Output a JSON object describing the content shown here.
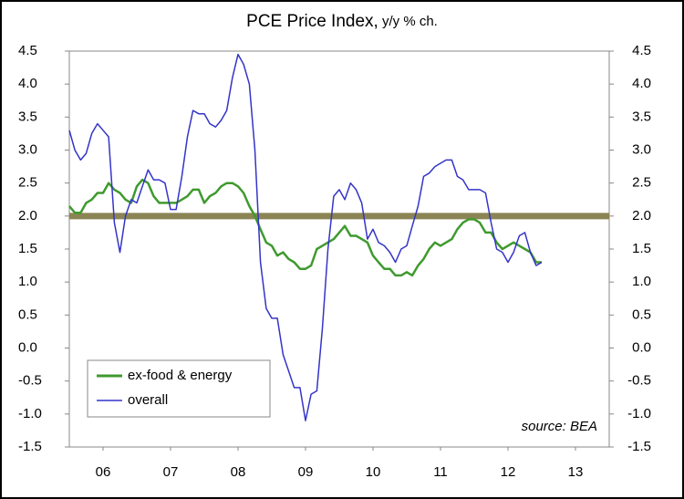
{
  "chart_data": {
    "type": "line",
    "title": "PCE Price Index,",
    "subtitle": "y/y % ch.",
    "annotation": "source: BEA",
    "x": [
      2006,
      2006.083,
      2006.167,
      2006.25,
      2006.333,
      2006.417,
      2006.5,
      2006.583,
      2006.667,
      2006.75,
      2006.833,
      2006.917,
      2007,
      2007.083,
      2007.167,
      2007.25,
      2007.333,
      2007.417,
      2007.5,
      2007.583,
      2007.667,
      2007.75,
      2007.833,
      2007.917,
      2008,
      2008.083,
      2008.167,
      2008.25,
      2008.333,
      2008.417,
      2008.5,
      2008.583,
      2008.667,
      2008.75,
      2008.833,
      2008.917,
      2009,
      2009.083,
      2009.167,
      2009.25,
      2009.333,
      2009.417,
      2009.5,
      2009.583,
      2009.667,
      2009.75,
      2009.833,
      2009.917,
      2010,
      2010.083,
      2010.167,
      2010.25,
      2010.333,
      2010.417,
      2010.5,
      2010.583,
      2010.667,
      2010.75,
      2010.833,
      2010.917,
      2011,
      2011.083,
      2011.167,
      2011.25,
      2011.333,
      2011.417,
      2011.5,
      2011.583,
      2011.667,
      2011.75,
      2011.833,
      2011.917,
      2012,
      2012.083,
      2012.167,
      2012.25,
      2012.333,
      2012.417,
      2012.5,
      2012.583,
      2012.667,
      2012.75,
      2012.833,
      2012.917,
      2013
    ],
    "series": [
      {
        "name": "ex-food & energy",
        "color": "#3f9a2e",
        "values": [
          2.15,
          2.05,
          2.05,
          2.2,
          2.25,
          2.35,
          2.35,
          2.5,
          2.4,
          2.35,
          2.25,
          2.2,
          2.45,
          2.55,
          2.5,
          2.3,
          2.2,
          2.2,
          2.2,
          2.2,
          2.25,
          2.3,
          2.4,
          2.4,
          2.2,
          2.3,
          2.35,
          2.45,
          2.5,
          2.5,
          2.45,
          2.35,
          2.15,
          2.0,
          1.8,
          1.6,
          1.55,
          1.4,
          1.45,
          1.35,
          1.3,
          1.2,
          1.2,
          1.25,
          1.5,
          1.55,
          1.6,
          1.65,
          1.75,
          1.85,
          1.7,
          1.7,
          1.65,
          1.6,
          1.4,
          1.3,
          1.2,
          1.2,
          1.1,
          1.1,
          1.15,
          1.1,
          1.25,
          1.35,
          1.5,
          1.6,
          1.55,
          1.6,
          1.65,
          1.8,
          1.9,
          1.95,
          1.95,
          1.9,
          1.75,
          1.75,
          1.6,
          1.5,
          1.55,
          1.6,
          1.55,
          1.5,
          1.45,
          1.3,
          1.3
        ]
      },
      {
        "name": "overall",
        "color": "#3434c8",
        "values": [
          3.3,
          3.0,
          2.85,
          2.95,
          3.25,
          3.4,
          3.3,
          3.2,
          1.9,
          1.45,
          2.0,
          2.25,
          2.2,
          2.45,
          2.7,
          2.55,
          2.55,
          2.5,
          2.1,
          2.1,
          2.6,
          3.2,
          3.6,
          3.55,
          3.55,
          3.4,
          3.35,
          3.45,
          3.6,
          4.1,
          4.45,
          4.3,
          4.0,
          3.0,
          1.3,
          0.6,
          0.45,
          0.45,
          -0.1,
          -0.35,
          -0.6,
          -0.6,
          -1.1,
          -0.7,
          -0.65,
          0.3,
          1.5,
          2.3,
          2.4,
          2.25,
          2.5,
          2.4,
          2.2,
          1.65,
          1.8,
          1.6,
          1.55,
          1.45,
          1.3,
          1.5,
          1.55,
          1.85,
          2.15,
          2.6,
          2.65,
          2.75,
          2.8,
          2.85,
          2.85,
          2.6,
          2.55,
          2.4,
          2.4,
          2.4,
          2.35,
          1.9,
          1.5,
          1.45,
          1.3,
          1.45,
          1.7,
          1.75,
          1.45,
          1.25,
          1.3
        ]
      }
    ],
    "reference_line": {
      "value": 2,
      "color": "#8b8454"
    },
    "xlim": [
      2006,
      2014
    ],
    "xticks": [
      {
        "value": 2006.5,
        "label": "06"
      },
      {
        "value": 2007.5,
        "label": "07"
      },
      {
        "value": 2008.5,
        "label": "08"
      },
      {
        "value": 2009.5,
        "label": "09"
      },
      {
        "value": 2010.5,
        "label": "10"
      },
      {
        "value": 2011.5,
        "label": "11"
      },
      {
        "value": 2012.5,
        "label": "12"
      },
      {
        "value": 2013.5,
        "label": "13"
      }
    ],
    "ylim": [
      -1.5,
      4.5
    ],
    "yticks": [
      -1.5,
      {
        "value": -1,
        "label": "-1.0"
      },
      -0.5,
      {
        "value": 0,
        "label": "0.0"
      },
      0.5,
      {
        "value": 1,
        "label": "1.0"
      },
      1.5,
      {
        "value": 2,
        "label": "2.0"
      },
      2.5,
      {
        "value": 3,
        "label": "3.0"
      },
      3.5,
      {
        "value": 4,
        "label": "4.0"
      },
      4.5
    ],
    "y2lim": [
      -1.5,
      4.5
    ],
    "y2ticks": [
      -1.5,
      {
        "value": -1,
        "label": "-1.0"
      },
      -0.5,
      {
        "value": 0,
        "label": "0.0"
      },
      0.5,
      {
        "value": 1,
        "label": "1.0"
      },
      1.5,
      {
        "value": 2,
        "label": "2.0"
      },
      2.5,
      {
        "value": 3,
        "label": "3.0"
      },
      3.5,
      {
        "value": 4,
        "label": "4.0"
      },
      4.5
    ],
    "legend": "lower-left"
  }
}
